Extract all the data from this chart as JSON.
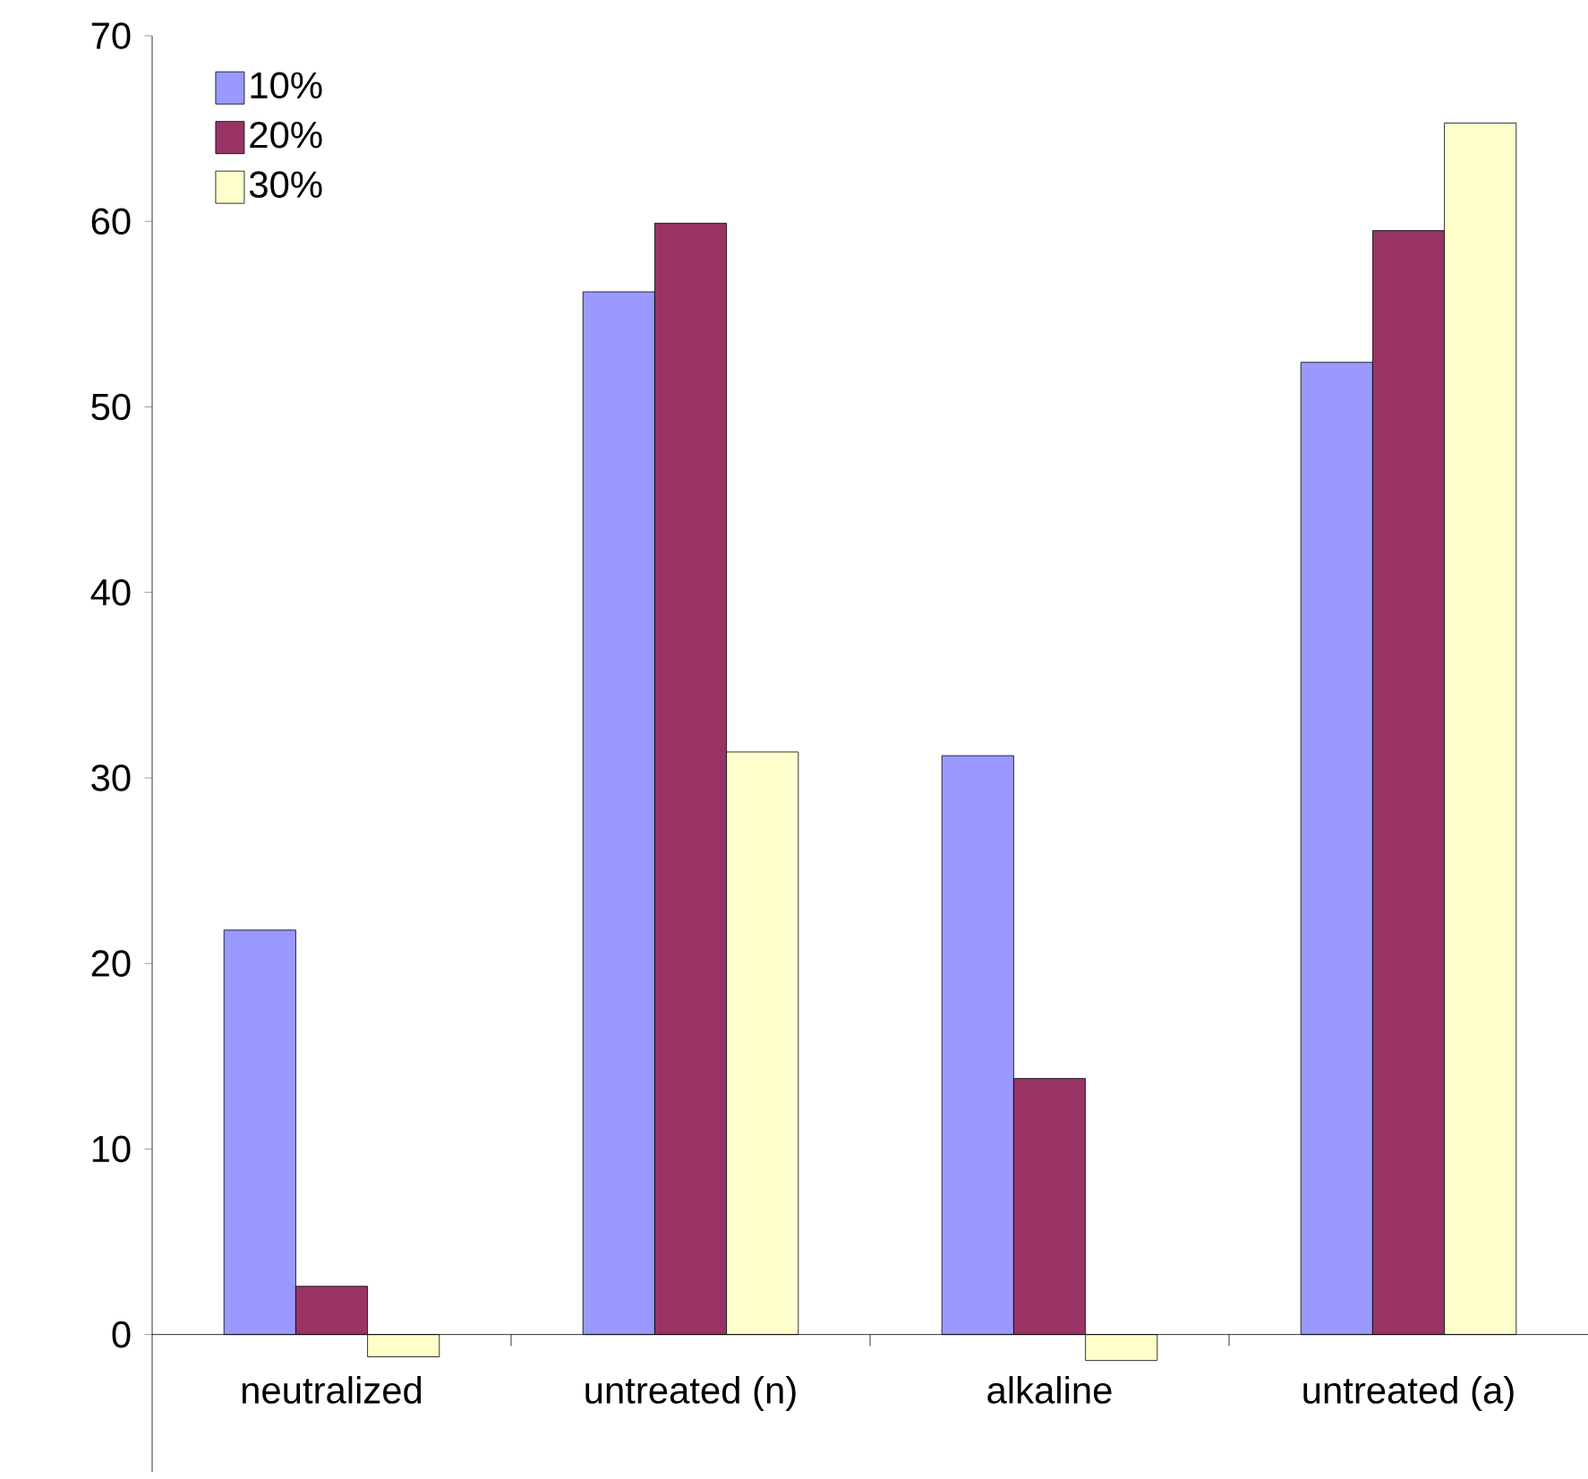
{
  "chart_data": {
    "type": "bar",
    "categories": [
      "neutralized",
      "untreated (n)",
      "alkaline",
      "untreated (a)"
    ],
    "series": [
      {
        "name": "10%",
        "color": "#9999ff",
        "values": [
          21.8,
          56.2,
          31.2,
          52.4
        ]
      },
      {
        "name": "20%",
        "color": "#993366",
        "values": [
          2.6,
          59.9,
          13.8,
          59.5
        ]
      },
      {
        "name": "30%",
        "color": "#ffffcc",
        "values": [
          -1.2,
          31.4,
          -1.4,
          65.3
        ]
      }
    ],
    "ylim": [
      -7.4,
      70
    ],
    "yticks": [
      0,
      10,
      20,
      30,
      40,
      50,
      60,
      70
    ],
    "grid": false,
    "legend": "top left"
  }
}
